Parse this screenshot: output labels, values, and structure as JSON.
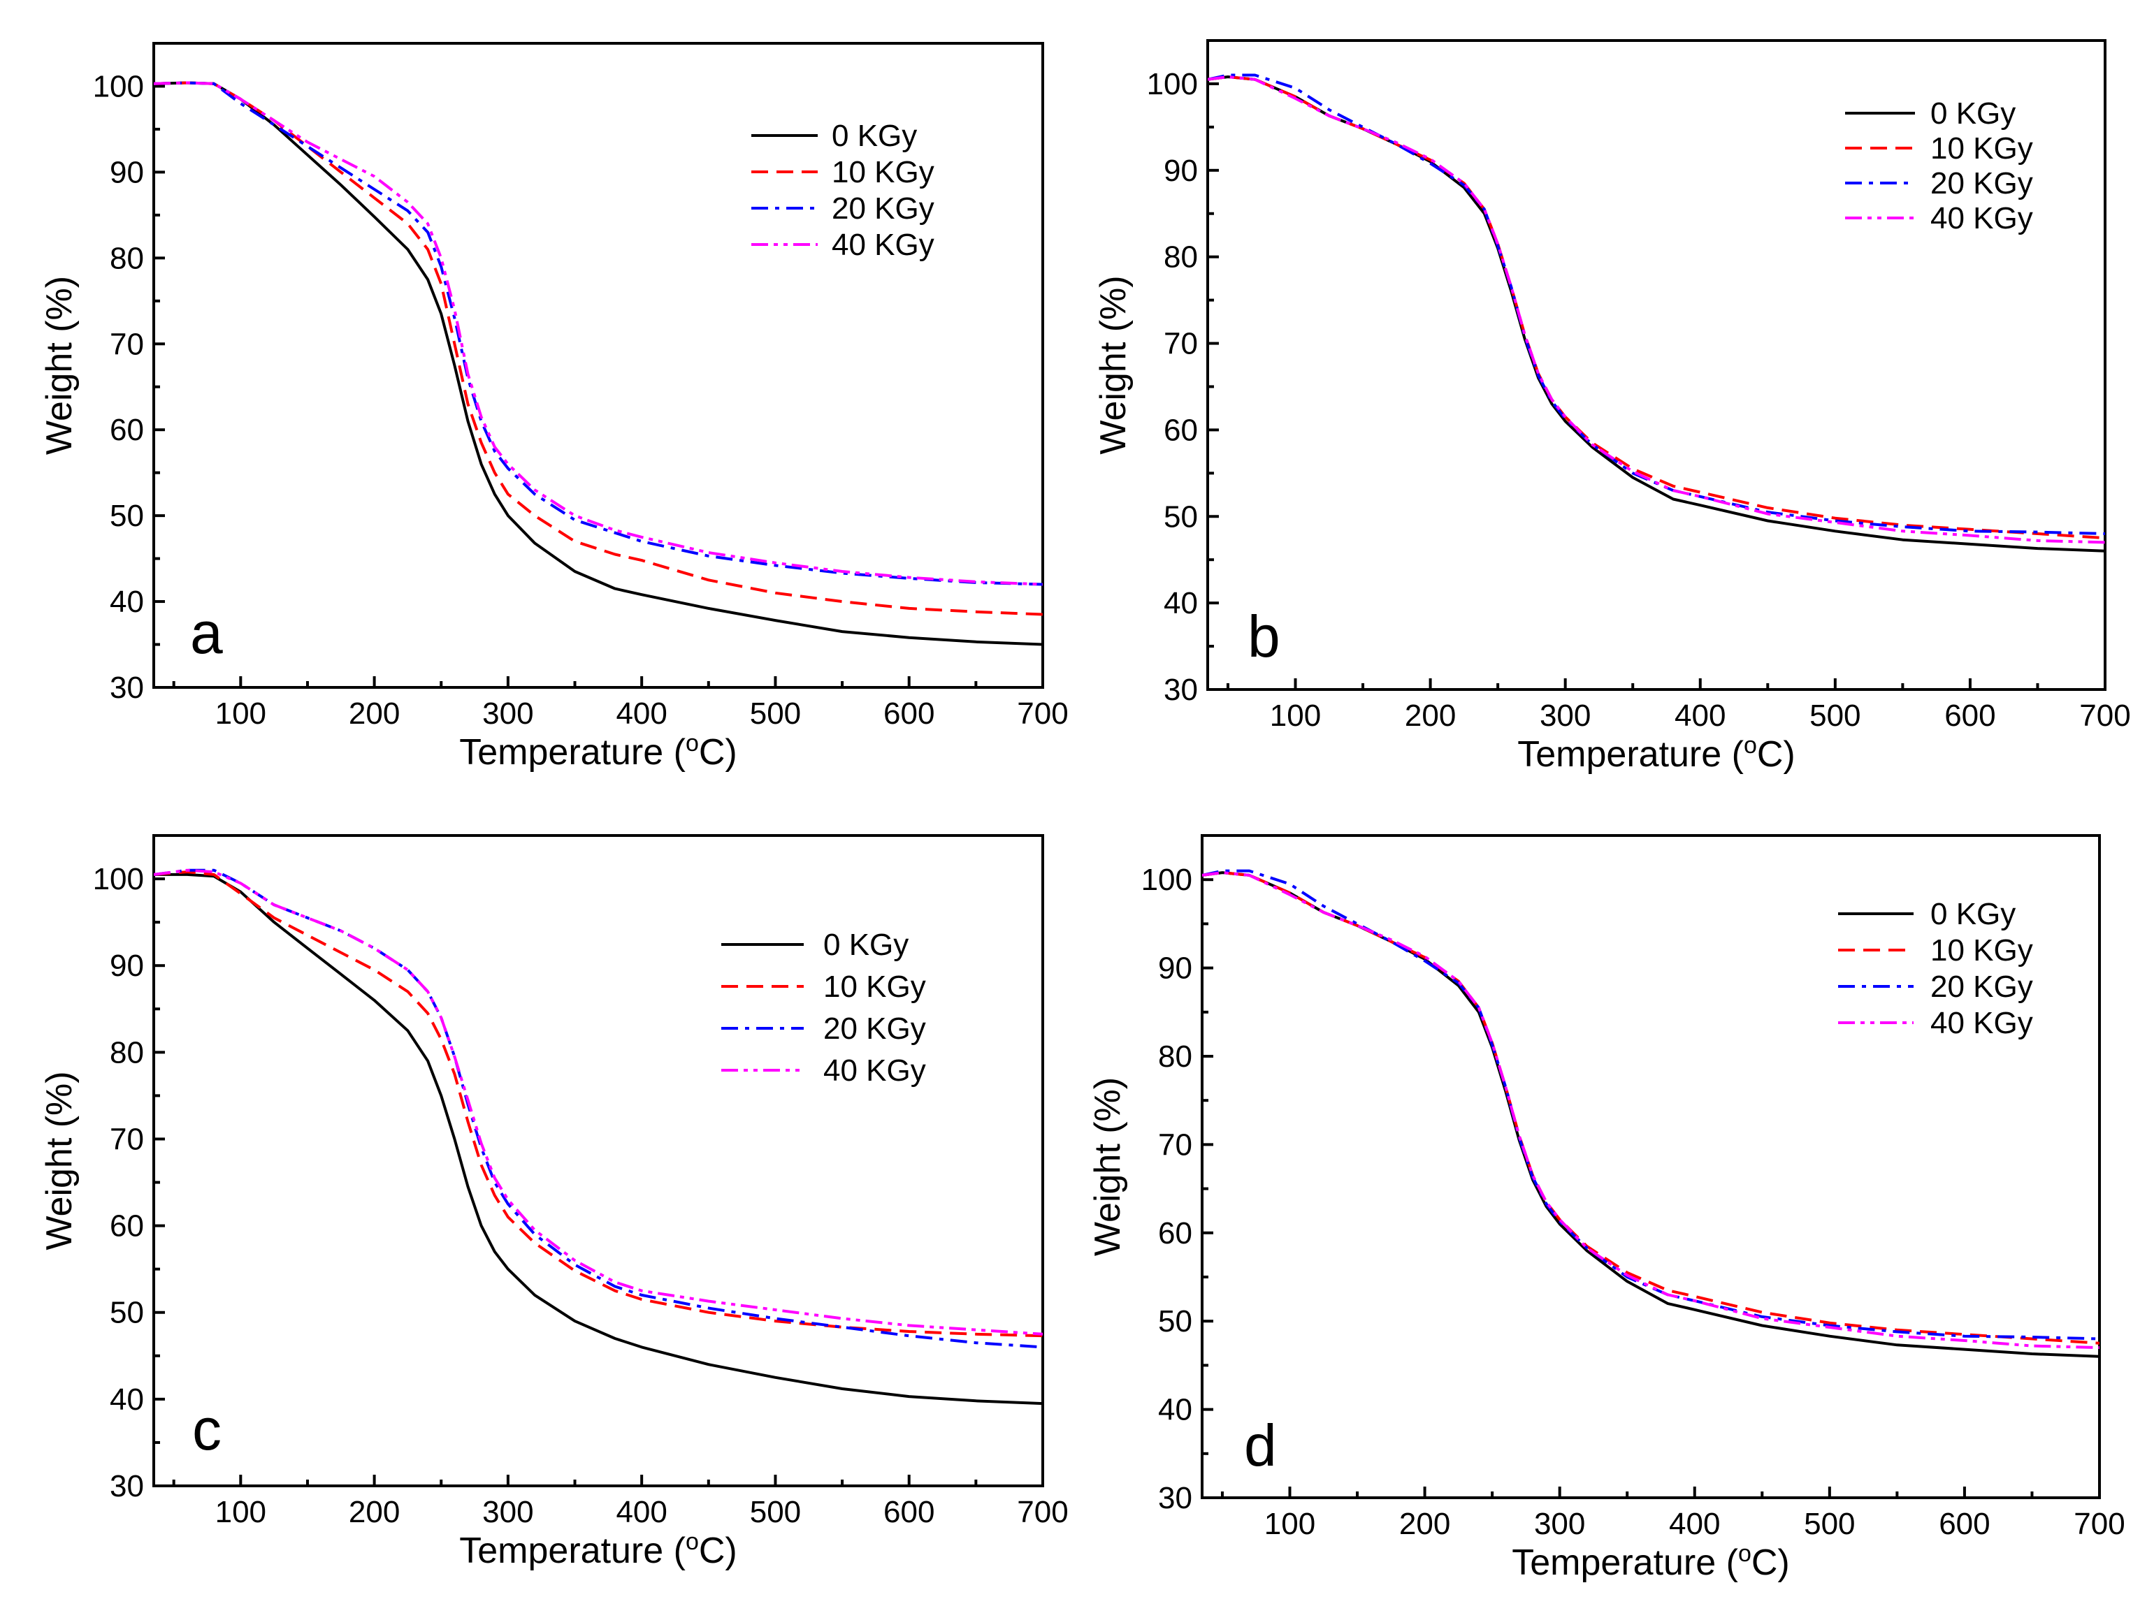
{
  "chart_data": [
    {
      "type": "line",
      "panel_letter": "a",
      "xlabel": "Temperature (oC)",
      "ylabel": "Weight (%)",
      "xlim": [
        35,
        700
      ],
      "ylim": [
        30,
        105
      ],
      "xticks": [
        100,
        200,
        300,
        400,
        500,
        600,
        700
      ],
      "yticks": [
        30,
        40,
        50,
        60,
        70,
        80,
        90,
        100
      ],
      "grid": false,
      "legend_position": "top-right",
      "series": [
        {
          "name": "0 KGy",
          "color": "#000000",
          "dash": "solid",
          "x": [
            35,
            60,
            80,
            100,
            125,
            150,
            175,
            200,
            225,
            240,
            250,
            260,
            270,
            280,
            290,
            300,
            320,
            350,
            380,
            400,
            450,
            500,
            550,
            600,
            650,
            700
          ],
          "y": [
            100.3,
            100.4,
            100.3,
            98.5,
            95.5,
            92.0,
            88.5,
            84.8,
            81.0,
            77.5,
            73.5,
            67.5,
            61.0,
            56.0,
            52.5,
            50.0,
            46.8,
            43.5,
            41.5,
            40.8,
            39.2,
            37.8,
            36.5,
            35.8,
            35.3,
            35.0
          ]
        },
        {
          "name": "10 KGy",
          "color": "#ff0000",
          "dash": "dashed",
          "x": [
            35,
            60,
            80,
            100,
            125,
            150,
            175,
            200,
            225,
            240,
            250,
            260,
            270,
            280,
            290,
            300,
            320,
            350,
            380,
            400,
            450,
            500,
            550,
            600,
            650,
            700
          ],
          "y": [
            100.3,
            100.4,
            100.3,
            98.5,
            96.0,
            93.0,
            90.0,
            87.0,
            84.0,
            81.0,
            77.0,
            70.0,
            63.0,
            58.5,
            55.0,
            52.5,
            50.0,
            47.0,
            45.5,
            44.8,
            42.5,
            41.0,
            40.0,
            39.2,
            38.8,
            38.5
          ]
        },
        {
          "name": "20 KGy",
          "color": "#0000ff",
          "dash": "dashdot",
          "x": [
            35,
            60,
            80,
            100,
            125,
            150,
            175,
            200,
            225,
            240,
            250,
            260,
            270,
            280,
            290,
            300,
            320,
            350,
            380,
            400,
            450,
            500,
            550,
            600,
            650,
            700
          ],
          "y": [
            100.3,
            100.4,
            100.3,
            98.0,
            95.5,
            93.0,
            90.5,
            88.0,
            85.5,
            83.0,
            79.0,
            73.0,
            66.0,
            61.0,
            57.5,
            55.5,
            52.5,
            49.5,
            48.0,
            47.0,
            45.3,
            44.2,
            43.3,
            42.7,
            42.2,
            42.0
          ]
        },
        {
          "name": "40 KGy",
          "color": "#ff00ff",
          "dash": "dashdotdot",
          "x": [
            35,
            60,
            80,
            100,
            125,
            150,
            175,
            200,
            225,
            240,
            250,
            260,
            270,
            280,
            290,
            300,
            320,
            350,
            380,
            400,
            450,
            500,
            550,
            600,
            650,
            700
          ],
          "y": [
            100.3,
            100.4,
            100.3,
            98.5,
            96.0,
            93.5,
            91.5,
            89.5,
            86.5,
            84.0,
            80.0,
            74.0,
            66.5,
            61.5,
            58.0,
            56.0,
            53.0,
            50.0,
            48.3,
            47.5,
            45.7,
            44.5,
            43.5,
            42.8,
            42.3,
            42.0
          ]
        }
      ]
    },
    {
      "type": "line",
      "panel_letter": "b",
      "xlabel": "Temperature (oC)",
      "ylabel": "Weight (%)",
      "xlim": [
        35,
        700
      ],
      "ylim": [
        30,
        105
      ],
      "xticks": [
        100,
        200,
        300,
        400,
        500,
        600,
        700
      ],
      "yticks": [
        30,
        40,
        50,
        60,
        70,
        80,
        90,
        100
      ],
      "grid": false,
      "legend_position": "top-right",
      "series": [
        {
          "name": "0 KGy",
          "color": "#000000",
          "dash": "solid",
          "x": [
            35,
            50,
            70,
            100,
            125,
            150,
            175,
            200,
            225,
            240,
            250,
            260,
            270,
            280,
            290,
            300,
            320,
            350,
            380,
            400,
            450,
            500,
            550,
            600,
            650,
            700
          ],
          "y": [
            100.5,
            100.8,
            100.5,
            98.5,
            96.3,
            94.8,
            93.0,
            91.0,
            88.0,
            85.0,
            81.0,
            76.0,
            70.5,
            66.0,
            63.0,
            61.0,
            58.0,
            54.5,
            52.0,
            51.3,
            49.5,
            48.3,
            47.3,
            46.8,
            46.3,
            46.0
          ]
        },
        {
          "name": "10 KGy",
          "color": "#ff0000",
          "dash": "dashed",
          "x": [
            35,
            50,
            70,
            100,
            125,
            150,
            175,
            200,
            225,
            240,
            250,
            260,
            270,
            280,
            290,
            300,
            320,
            350,
            380,
            400,
            450,
            500,
            550,
            600,
            650,
            700
          ],
          "y": [
            100.5,
            100.8,
            100.5,
            98.5,
            96.3,
            94.8,
            93.0,
            91.2,
            88.5,
            85.5,
            81.5,
            76.5,
            71.0,
            66.5,
            63.5,
            61.5,
            58.5,
            55.5,
            53.5,
            52.8,
            51.0,
            49.8,
            49.0,
            48.5,
            48.0,
            47.5
          ]
        },
        {
          "name": "20 KGy",
          "color": "#0000ff",
          "dash": "dashdot",
          "x": [
            35,
            50,
            70,
            100,
            125,
            150,
            175,
            200,
            225,
            240,
            250,
            260,
            270,
            280,
            290,
            300,
            320,
            350,
            380,
            400,
            450,
            500,
            550,
            600,
            650,
            700
          ],
          "y": [
            100.5,
            101.0,
            101.0,
            99.5,
            97.0,
            95.0,
            93.0,
            90.8,
            88.3,
            85.5,
            81.3,
            76.5,
            70.8,
            66.3,
            63.3,
            61.3,
            58.3,
            55.0,
            53.0,
            52.3,
            50.5,
            49.5,
            48.8,
            48.3,
            48.2,
            48.0
          ]
        },
        {
          "name": "40 KGy",
          "color": "#ff00ff",
          "dash": "dashdotdot",
          "x": [
            35,
            50,
            70,
            100,
            125,
            150,
            175,
            200,
            225,
            240,
            250,
            260,
            270,
            280,
            290,
            300,
            320,
            350,
            380,
            400,
            450,
            500,
            550,
            600,
            650,
            700
          ],
          "y": [
            100.5,
            100.8,
            100.5,
            98.3,
            96.3,
            94.8,
            93.2,
            91.3,
            88.5,
            85.5,
            81.5,
            76.5,
            71.0,
            66.5,
            63.5,
            61.5,
            58.3,
            55.2,
            53.0,
            52.3,
            50.3,
            49.3,
            48.3,
            47.8,
            47.2,
            47.0
          ]
        }
      ]
    },
    {
      "type": "line",
      "panel_letter": "c",
      "xlabel": "Temperature (oC)",
      "ylabel": "Weight (%)",
      "xlim": [
        35,
        700
      ],
      "ylim": [
        30,
        105
      ],
      "xticks": [
        100,
        200,
        300,
        400,
        500,
        600,
        700
      ],
      "yticks": [
        30,
        40,
        50,
        60,
        70,
        80,
        90,
        100
      ],
      "grid": false,
      "legend_position": "top-right",
      "series": [
        {
          "name": "0 KGy",
          "color": "#000000",
          "dash": "solid",
          "x": [
            35,
            60,
            80,
            100,
            125,
            150,
            175,
            200,
            225,
            240,
            250,
            260,
            270,
            280,
            290,
            300,
            320,
            350,
            380,
            400,
            450,
            500,
            550,
            600,
            650,
            700
          ],
          "y": [
            100.5,
            100.5,
            100.3,
            98.5,
            95.0,
            92.0,
            89.0,
            86.0,
            82.5,
            79.0,
            75.0,
            70.0,
            64.5,
            60.0,
            57.0,
            55.0,
            52.0,
            49.0,
            47.0,
            46.0,
            44.0,
            42.5,
            41.2,
            40.3,
            39.8,
            39.5
          ]
        },
        {
          "name": "10 KGy",
          "color": "#ff0000",
          "dash": "dashed",
          "x": [
            35,
            60,
            80,
            100,
            125,
            150,
            175,
            200,
            225,
            240,
            250,
            260,
            270,
            280,
            290,
            300,
            320,
            350,
            380,
            400,
            450,
            500,
            550,
            600,
            650,
            700
          ],
          "y": [
            100.5,
            100.8,
            100.5,
            98.3,
            95.5,
            93.5,
            91.5,
            89.5,
            87.0,
            84.5,
            81.5,
            77.5,
            72.0,
            67.0,
            63.5,
            61.0,
            58.0,
            54.8,
            52.5,
            51.5,
            50.0,
            49.0,
            48.3,
            47.8,
            47.5,
            47.3
          ]
        },
        {
          "name": "20 KGy",
          "color": "#0000ff",
          "dash": "dashdot",
          "x": [
            35,
            60,
            80,
            100,
            125,
            150,
            175,
            200,
            225,
            240,
            250,
            260,
            270,
            280,
            290,
            300,
            320,
            350,
            380,
            400,
            450,
            500,
            550,
            600,
            650,
            700
          ],
          "y": [
            100.5,
            101.0,
            101.0,
            99.5,
            97.0,
            95.5,
            94.0,
            92.0,
            89.5,
            87.0,
            84.0,
            79.5,
            74.0,
            69.0,
            65.0,
            62.5,
            59.0,
            55.5,
            53.0,
            52.0,
            50.5,
            49.3,
            48.3,
            47.3,
            46.5,
            46.0
          ]
        },
        {
          "name": "40 KGy",
          "color": "#ff00ff",
          "dash": "dashdotdot",
          "x": [
            35,
            60,
            80,
            100,
            125,
            150,
            175,
            200,
            225,
            240,
            250,
            260,
            270,
            280,
            290,
            300,
            320,
            350,
            380,
            400,
            450,
            500,
            550,
            600,
            650,
            700
          ],
          "y": [
            100.5,
            101.0,
            100.8,
            99.5,
            97.0,
            95.5,
            94.0,
            92.0,
            89.5,
            87.0,
            84.0,
            79.5,
            74.5,
            69.5,
            65.5,
            63.0,
            59.5,
            56.0,
            53.5,
            52.5,
            51.3,
            50.3,
            49.3,
            48.5,
            48.0,
            47.5
          ]
        }
      ]
    },
    {
      "type": "line",
      "panel_letter": "d",
      "xlabel": "Temperature (oC)",
      "ylabel": "Weight (%)",
      "xlim": [
        35,
        700
      ],
      "ylim": [
        30,
        105
      ],
      "xticks": [
        100,
        200,
        300,
        400,
        500,
        600,
        700
      ],
      "yticks": [
        30,
        40,
        50,
        60,
        70,
        80,
        90,
        100
      ],
      "grid": false,
      "legend_position": "top-right",
      "series": [
        {
          "name": "0 KGy",
          "color": "#000000",
          "dash": "solid",
          "x": [
            35,
            50,
            70,
            100,
            125,
            150,
            175,
            200,
            225,
            240,
            250,
            260,
            270,
            280,
            290,
            300,
            320,
            350,
            380,
            400,
            450,
            500,
            550,
            600,
            650,
            700
          ],
          "y": [
            100.5,
            100.8,
            100.5,
            98.5,
            96.3,
            94.8,
            93.0,
            91.0,
            88.0,
            85.0,
            81.0,
            76.0,
            70.5,
            66.0,
            63.0,
            61.0,
            58.0,
            54.5,
            52.0,
            51.3,
            49.5,
            48.3,
            47.3,
            46.8,
            46.3,
            46.0
          ]
        },
        {
          "name": "10 KGy",
          "color": "#ff0000",
          "dash": "dashed",
          "x": [
            35,
            50,
            70,
            100,
            125,
            150,
            175,
            200,
            225,
            240,
            250,
            260,
            270,
            280,
            290,
            300,
            320,
            350,
            380,
            400,
            450,
            500,
            550,
            600,
            650,
            700
          ],
          "y": [
            100.5,
            100.8,
            100.5,
            98.5,
            96.3,
            94.8,
            93.0,
            91.2,
            88.5,
            85.5,
            81.5,
            76.5,
            71.0,
            66.5,
            63.5,
            61.5,
            58.5,
            55.5,
            53.5,
            52.8,
            51.0,
            49.8,
            49.0,
            48.5,
            48.0,
            47.5
          ]
        },
        {
          "name": "20 KGy",
          "color": "#0000ff",
          "dash": "dashdot",
          "x": [
            35,
            50,
            70,
            100,
            125,
            150,
            175,
            200,
            225,
            240,
            250,
            260,
            270,
            280,
            290,
            300,
            320,
            350,
            380,
            400,
            450,
            500,
            550,
            600,
            650,
            700
          ],
          "y": [
            100.5,
            101.0,
            101.0,
            99.5,
            97.0,
            95.0,
            93.0,
            90.8,
            88.3,
            85.5,
            81.3,
            76.5,
            70.8,
            66.3,
            63.3,
            61.3,
            58.3,
            55.0,
            53.0,
            52.3,
            50.5,
            49.5,
            48.8,
            48.3,
            48.2,
            48.0
          ]
        },
        {
          "name": "40 KGy",
          "color": "#ff00ff",
          "dash": "dashdotdot",
          "x": [
            35,
            50,
            70,
            100,
            125,
            150,
            175,
            200,
            225,
            240,
            250,
            260,
            270,
            280,
            290,
            300,
            320,
            350,
            380,
            400,
            450,
            500,
            550,
            600,
            650,
            700
          ],
          "y": [
            100.5,
            100.8,
            100.5,
            98.3,
            96.3,
            94.8,
            93.2,
            91.3,
            88.5,
            85.5,
            81.5,
            76.5,
            71.0,
            66.5,
            63.5,
            61.5,
            58.3,
            55.2,
            53.0,
            52.3,
            50.3,
            49.3,
            48.3,
            47.8,
            47.2,
            47.0
          ]
        }
      ]
    }
  ]
}
